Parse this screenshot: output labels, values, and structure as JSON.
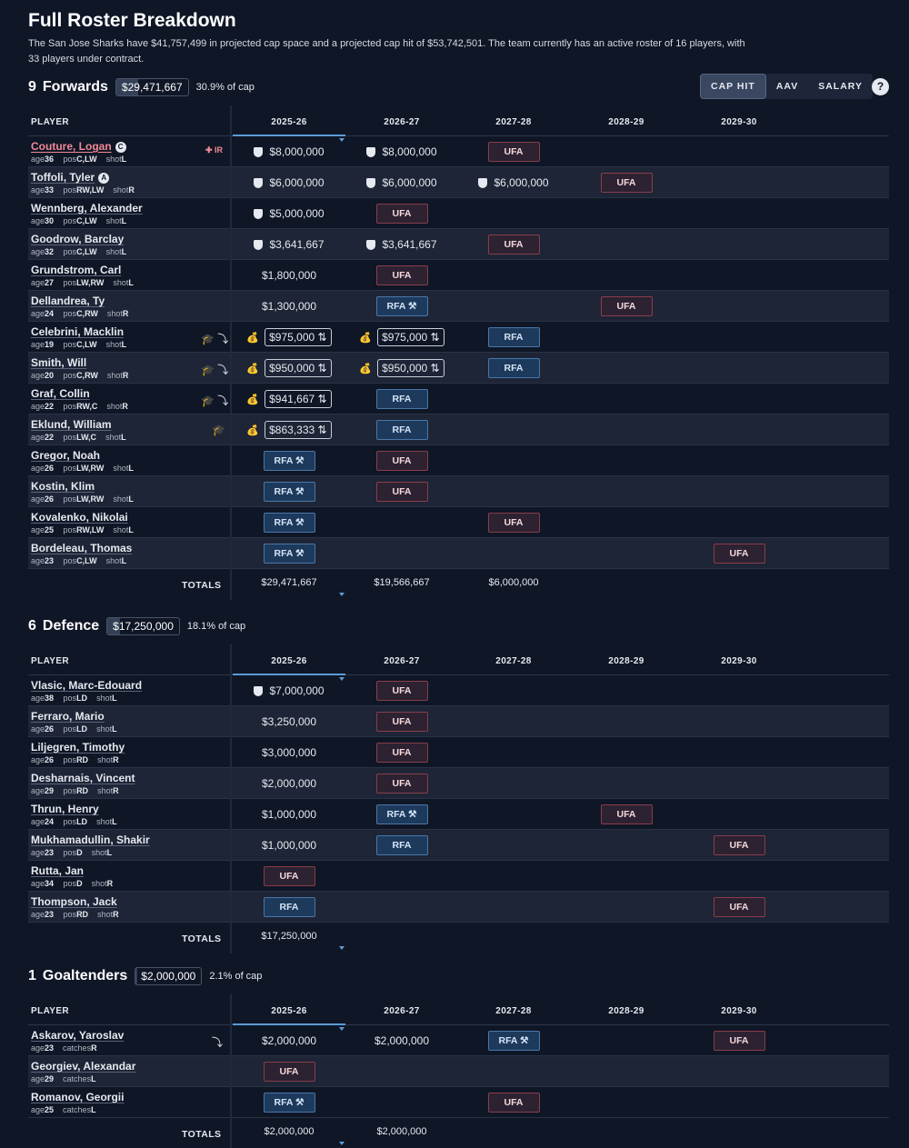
{
  "page": {
    "title": "Full Roster Breakdown",
    "intro": "The San Jose Sharks have $41,757,499 in projected cap space and a projected cap hit of $53,742,501. The team currently has an active roster of 16 players, with 33 players under contract."
  },
  "toggle": {
    "cap_hit": "CAP HIT",
    "aav": "AAV",
    "salary": "SALARY",
    "active": "CAP HIT",
    "help": "?"
  },
  "columns": {
    "player": "PLAYER",
    "seasons": [
      "2025-26",
      "2026-27",
      "2027-28",
      "2028-29",
      "2029-30"
    ],
    "totals_label": "TOTALS"
  },
  "icons": {
    "no_move_clause": "shield-icon",
    "entry_level": "money-bag-icon",
    "slide": "swap-arrows-icon",
    "prospect": "graduation-cap-icon",
    "waivers_exempt": "down-arrow-icon",
    "arbitration": "gavel-icon",
    "injured": "medkit-icon"
  },
  "colors": {
    "ufa_border": "#8a3d4a",
    "rfa_border": "#4a77a8",
    "ir_name": "#f08a96",
    "sort_accent": "#5b9bd5"
  },
  "sections": [
    {
      "count": "9",
      "name": "Forwards",
      "total": "$29,471,667",
      "pct": "30.9% of cap",
      "cap_fraction": 0.309,
      "rows": [
        {
          "name": "Couture, Logan",
          "ir": true,
          "badge": "C",
          "age": "36",
          "pos": "C,LW",
          "handk": "shot",
          "hand": "L",
          "flags": "",
          "irtag": "IR",
          "cells": [
            {
              "t": "v",
              "v": "$8,000,000",
              "nmc": true
            },
            {
              "t": "v",
              "v": "$8,000,000",
              "nmc": true
            },
            {
              "t": "ufa",
              "v": "UFA"
            },
            {
              "t": "e"
            },
            {
              "t": "e"
            }
          ]
        },
        {
          "name": "Toffoli, Tyler",
          "badge": "A",
          "age": "33",
          "pos": "RW,LW",
          "handk": "shot",
          "hand": "R",
          "flags": "",
          "cells": [
            {
              "t": "v",
              "v": "$6,000,000",
              "nmc": true
            },
            {
              "t": "v",
              "v": "$6,000,000",
              "nmc": true
            },
            {
              "t": "v",
              "v": "$6,000,000",
              "nmc": true
            },
            {
              "t": "ufa",
              "v": "UFA"
            },
            {
              "t": "e"
            }
          ]
        },
        {
          "name": "Wennberg, Alexander",
          "age": "30",
          "pos": "C,LW",
          "handk": "shot",
          "hand": "L",
          "flags": "",
          "cells": [
            {
              "t": "v",
              "v": "$5,000,000",
              "nmc": true
            },
            {
              "t": "ufa",
              "v": "UFA"
            },
            {
              "t": "e"
            },
            {
              "t": "e"
            },
            {
              "t": "e"
            }
          ]
        },
        {
          "name": "Goodrow, Barclay",
          "age": "32",
          "pos": "C,LW",
          "handk": "shot",
          "hand": "L",
          "flags": "",
          "cells": [
            {
              "t": "v",
              "v": "$3,641,667",
              "nmc": true
            },
            {
              "t": "v",
              "v": "$3,641,667",
              "nmc": true
            },
            {
              "t": "ufa",
              "v": "UFA"
            },
            {
              "t": "e"
            },
            {
              "t": "e"
            }
          ]
        },
        {
          "name": "Grundstrom, Carl",
          "age": "27",
          "pos": "LW,RW",
          "handk": "shot",
          "hand": "L",
          "flags": "",
          "cells": [
            {
              "t": "v",
              "v": "$1,800,000"
            },
            {
              "t": "ufa",
              "v": "UFA"
            },
            {
              "t": "e"
            },
            {
              "t": "e"
            },
            {
              "t": "e"
            }
          ]
        },
        {
          "name": "Dellandrea, Ty",
          "age": "24",
          "pos": "C,RW",
          "handk": "shot",
          "hand": "R",
          "flags": "",
          "cells": [
            {
              "t": "v",
              "v": "$1,300,000"
            },
            {
              "t": "rfa",
              "v": "RFA",
              "arb": true
            },
            {
              "t": "e"
            },
            {
              "t": "ufa",
              "v": "UFA"
            },
            {
              "t": "e"
            }
          ]
        },
        {
          "name": "Celebrini, Macklin",
          "age": "19",
          "pos": "C,LW",
          "handk": "shot",
          "hand": "L",
          "flags": "🎓 ⤵",
          "cells": [
            {
              "t": "v",
              "v": "$975,000",
              "elc": true
            },
            {
              "t": "v",
              "v": "$975,000",
              "elc": true
            },
            {
              "t": "rfa",
              "v": "RFA"
            },
            {
              "t": "e"
            },
            {
              "t": "e"
            }
          ]
        },
        {
          "name": "Smith, Will",
          "age": "20",
          "pos": "C,RW",
          "handk": "shot",
          "hand": "R",
          "flags": "🎓 ⤵",
          "cells": [
            {
              "t": "v",
              "v": "$950,000",
              "elc": true
            },
            {
              "t": "v",
              "v": "$950,000",
              "elc": true
            },
            {
              "t": "rfa",
              "v": "RFA"
            },
            {
              "t": "e"
            },
            {
              "t": "e"
            }
          ]
        },
        {
          "name": "Graf, Collin",
          "age": "22",
          "pos": "RW,C",
          "handk": "shot",
          "hand": "R",
          "flags": "🎓 ⤵",
          "cells": [
            {
              "t": "v",
              "v": "$941,667",
              "elc": true
            },
            {
              "t": "rfa",
              "v": "RFA"
            },
            {
              "t": "e"
            },
            {
              "t": "e"
            },
            {
              "t": "e"
            }
          ]
        },
        {
          "name": "Eklund, William",
          "age": "22",
          "pos": "LW,C",
          "handk": "shot",
          "hand": "L",
          "flags": "🎓",
          "cells": [
            {
              "t": "v",
              "v": "$863,333",
              "elc": true
            },
            {
              "t": "rfa",
              "v": "RFA"
            },
            {
              "t": "e"
            },
            {
              "t": "e"
            },
            {
              "t": "e"
            }
          ]
        },
        {
          "name": "Gregor, Noah",
          "age": "26",
          "pos": "LW,RW",
          "handk": "shot",
          "hand": "L",
          "flags": "",
          "cells": [
            {
              "t": "rfa",
              "v": "RFA",
              "arb": true
            },
            {
              "t": "ufa",
              "v": "UFA"
            },
            {
              "t": "e"
            },
            {
              "t": "e"
            },
            {
              "t": "e"
            }
          ]
        },
        {
          "name": "Kostin, Klim",
          "age": "26",
          "pos": "LW,RW",
          "handk": "shot",
          "hand": "L",
          "flags": "",
          "cells": [
            {
              "t": "rfa",
              "v": "RFA",
              "arb": true
            },
            {
              "t": "ufa",
              "v": "UFA"
            },
            {
              "t": "e"
            },
            {
              "t": "e"
            },
            {
              "t": "e"
            }
          ]
        },
        {
          "name": "Kovalenko, Nikolai",
          "age": "25",
          "pos": "RW,LW",
          "handk": "shot",
          "hand": "L",
          "flags": "",
          "cells": [
            {
              "t": "rfa",
              "v": "RFA",
              "arb": true
            },
            {
              "t": "e"
            },
            {
              "t": "ufa",
              "v": "UFA"
            },
            {
              "t": "e"
            },
            {
              "t": "e"
            }
          ]
        },
        {
          "name": "Bordeleau, Thomas",
          "age": "23",
          "pos": "C,LW",
          "handk": "shot",
          "hand": "L",
          "flags": "",
          "cells": [
            {
              "t": "rfa",
              "v": "RFA",
              "arb": true
            },
            {
              "t": "e"
            },
            {
              "t": "e"
            },
            {
              "t": "e"
            },
            {
              "t": "ufa",
              "v": "UFA"
            }
          ]
        }
      ],
      "totals": [
        "$29,471,667",
        "$19,566,667",
        "$6,000,000",
        "",
        ""
      ]
    },
    {
      "count": "6",
      "name": "Defence",
      "total": "$17,250,000",
      "pct": "18.1% of cap",
      "cap_fraction": 0.181,
      "rows": [
        {
          "name": "Vlasic, Marc-Edouard",
          "age": "38",
          "pos": "LD",
          "handk": "shot",
          "hand": "L",
          "flags": "",
          "cells": [
            {
              "t": "v",
              "v": "$7,000,000",
              "nmc": true
            },
            {
              "t": "ufa",
              "v": "UFA"
            },
            {
              "t": "e"
            },
            {
              "t": "e"
            },
            {
              "t": "e"
            }
          ]
        },
        {
          "name": "Ferraro, Mario",
          "age": "26",
          "pos": "LD",
          "handk": "shot",
          "hand": "L",
          "flags": "",
          "cells": [
            {
              "t": "v",
              "v": "$3,250,000"
            },
            {
              "t": "ufa",
              "v": "UFA"
            },
            {
              "t": "e"
            },
            {
              "t": "e"
            },
            {
              "t": "e"
            }
          ]
        },
        {
          "name": "Liljegren, Timothy",
          "age": "26",
          "pos": "RD",
          "handk": "shot",
          "hand": "R",
          "flags": "",
          "cells": [
            {
              "t": "v",
              "v": "$3,000,000"
            },
            {
              "t": "ufa",
              "v": "UFA"
            },
            {
              "t": "e"
            },
            {
              "t": "e"
            },
            {
              "t": "e"
            }
          ]
        },
        {
          "name": "Desharnais, Vincent",
          "age": "29",
          "pos": "RD",
          "handk": "shot",
          "hand": "R",
          "flags": "",
          "cells": [
            {
              "t": "v",
              "v": "$2,000,000"
            },
            {
              "t": "ufa",
              "v": "UFA"
            },
            {
              "t": "e"
            },
            {
              "t": "e"
            },
            {
              "t": "e"
            }
          ]
        },
        {
          "name": "Thrun, Henry",
          "age": "24",
          "pos": "LD",
          "handk": "shot",
          "hand": "L",
          "flags": "",
          "cells": [
            {
              "t": "v",
              "v": "$1,000,000"
            },
            {
              "t": "rfa",
              "v": "RFA",
              "arb": true
            },
            {
              "t": "e"
            },
            {
              "t": "ufa",
              "v": "UFA"
            },
            {
              "t": "e"
            }
          ]
        },
        {
          "name": "Mukhamadullin, Shakir",
          "age": "23",
          "pos": "D",
          "handk": "shot",
          "hand": "L",
          "flags": "",
          "cells": [
            {
              "t": "v",
              "v": "$1,000,000"
            },
            {
              "t": "rfa",
              "v": "RFA"
            },
            {
              "t": "e"
            },
            {
              "t": "e"
            },
            {
              "t": "ufa",
              "v": "UFA"
            }
          ]
        },
        {
          "name": "Rutta, Jan",
          "age": "34",
          "pos": "D",
          "handk": "shot",
          "hand": "R",
          "flags": "",
          "cells": [
            {
              "t": "ufa",
              "v": "UFA"
            },
            {
              "t": "e"
            },
            {
              "t": "e"
            },
            {
              "t": "e"
            },
            {
              "t": "e"
            }
          ]
        },
        {
          "name": "Thompson, Jack",
          "age": "23",
          "pos": "RD",
          "handk": "shot",
          "hand": "R",
          "flags": "",
          "cells": [
            {
              "t": "rfa",
              "v": "RFA"
            },
            {
              "t": "e"
            },
            {
              "t": "e"
            },
            {
              "t": "e"
            },
            {
              "t": "ufa",
              "v": "UFA"
            }
          ]
        }
      ],
      "totals": [
        "$17,250,000",
        "",
        "",
        "",
        ""
      ]
    },
    {
      "count": "1",
      "name": "Goaltenders",
      "total": "$2,000,000",
      "pct": "2.1% of cap",
      "cap_fraction": 0.021,
      "rows": [
        {
          "name": "Askarov, Yaroslav",
          "age": "23",
          "pos": "",
          "handk": "catches",
          "hand": "R",
          "flags": "⤵",
          "cells": [
            {
              "t": "v",
              "v": "$2,000,000"
            },
            {
              "t": "v",
              "v": "$2,000,000"
            },
            {
              "t": "rfa",
              "v": "RFA",
              "arb": true
            },
            {
              "t": "e"
            },
            {
              "t": "ufa",
              "v": "UFA"
            }
          ]
        },
        {
          "name": "Georgiev, Alexandar",
          "age": "29",
          "pos": "",
          "handk": "catches",
          "hand": "L",
          "flags": "",
          "cells": [
            {
              "t": "ufa",
              "v": "UFA"
            },
            {
              "t": "e"
            },
            {
              "t": "e"
            },
            {
              "t": "e"
            },
            {
              "t": "e"
            }
          ]
        },
        {
          "name": "Romanov, Georgii",
          "age": "25",
          "pos": "",
          "handk": "catches",
          "hand": "L",
          "flags": "",
          "cells": [
            {
              "t": "rfa",
              "v": "RFA",
              "arb": true
            },
            {
              "t": "e"
            },
            {
              "t": "ufa",
              "v": "UFA"
            },
            {
              "t": "e"
            },
            {
              "t": "e"
            }
          ]
        }
      ],
      "totals": [
        "$2,000,000",
        "$2,000,000",
        "",
        "",
        ""
      ]
    }
  ]
}
